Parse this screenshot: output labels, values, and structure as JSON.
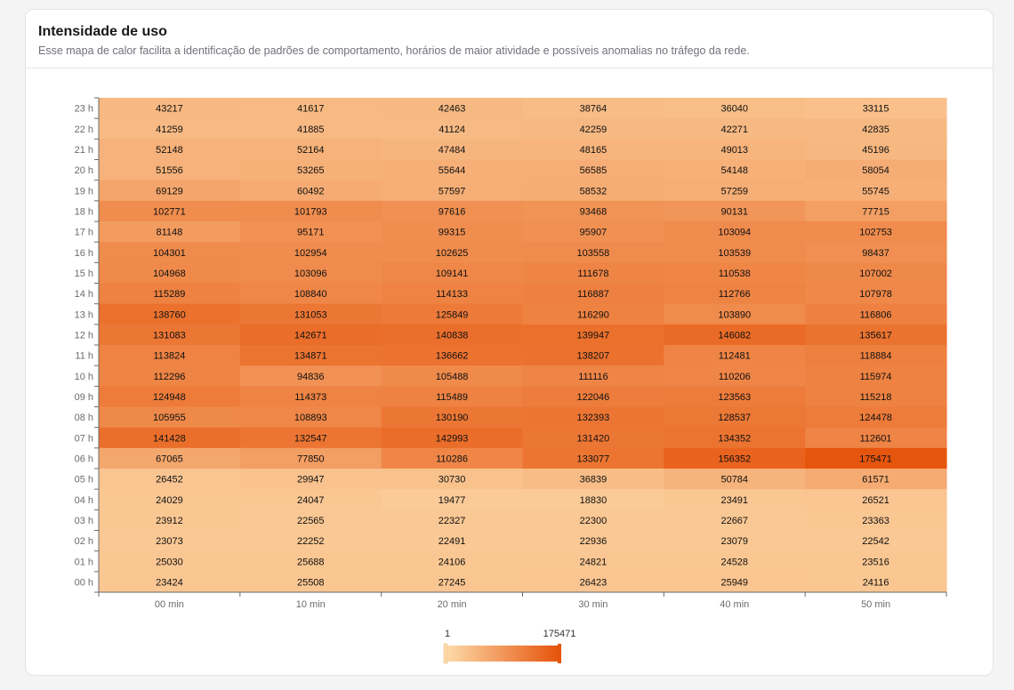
{
  "header": {
    "title": "Intensidade de uso",
    "subtitle": "Esse mapa de calor facilita a identificação de padrões de comportamento, horários de maior atividade e possíveis anomalias no tráfego da rede."
  },
  "colors": {
    "low": "#fdd9a8",
    "high": "#e6550d",
    "handle": "#e6550d",
    "cell_text": "#111111",
    "axis_text": "#6b6b6b",
    "axis_line": "#6b6b6b"
  },
  "chart_data": {
    "type": "heatmap",
    "title": "Intensidade de uso",
    "x": [
      "00 min",
      "10 min",
      "20 min",
      "30 min",
      "40 min",
      "50 min"
    ],
    "y": [
      "23 h",
      "22 h",
      "21 h",
      "20 h",
      "19 h",
      "18 h",
      "17 h",
      "16 h",
      "15 h",
      "14 h",
      "13 h",
      "12 h",
      "11 h",
      "10 h",
      "09 h",
      "08 h",
      "07 h",
      "06 h",
      "05 h",
      "04 h",
      "03 h",
      "02 h",
      "01 h",
      "00 h"
    ],
    "values": [
      [
        43217,
        41617,
        42463,
        38764,
        36040,
        33115
      ],
      [
        41259,
        41885,
        41124,
        42259,
        42271,
        42835
      ],
      [
        52148,
        52164,
        47484,
        48165,
        49013,
        45196
      ],
      [
        51556,
        53265,
        55644,
        56585,
        54148,
        58054
      ],
      [
        69129,
        60492,
        57597,
        58532,
        57259,
        55745
      ],
      [
        102771,
        101793,
        97616,
        93468,
        90131,
        77715
      ],
      [
        81148,
        95171,
        99315,
        95907,
        103094,
        102753
      ],
      [
        104301,
        102954,
        102625,
        103558,
        103539,
        98437
      ],
      [
        104968,
        103096,
        109141,
        111678,
        110538,
        107002
      ],
      [
        115289,
        108840,
        114133,
        116887,
        112766,
        107978
      ],
      [
        138760,
        131053,
        125849,
        116290,
        103890,
        116806
      ],
      [
        131083,
        142671,
        140838,
        139947,
        146082,
        135617
      ],
      [
        113824,
        134871,
        136662,
        138207,
        112481,
        118884
      ],
      [
        112296,
        94836,
        105488,
        111116,
        110206,
        115974
      ],
      [
        124948,
        114373,
        115489,
        122046,
        123563,
        115218
      ],
      [
        105955,
        108893,
        130190,
        132393,
        128537,
        124478
      ],
      [
        141428,
        132547,
        142993,
        131420,
        134352,
        112601
      ],
      [
        67065,
        77850,
        110286,
        133077,
        156352,
        175471
      ],
      [
        26452,
        29947,
        30730,
        36839,
        50784,
        61571
      ],
      [
        24029,
        24047,
        19477,
        18830,
        23491,
        26521
      ],
      [
        23912,
        22565,
        22327,
        22300,
        22667,
        23363
      ],
      [
        23073,
        22252,
        22491,
        22936,
        23079,
        22542
      ],
      [
        25030,
        25688,
        24106,
        24821,
        24528,
        23516
      ],
      [
        23424,
        25508,
        27245,
        26423,
        25949,
        24116
      ]
    ],
    "visual_map": {
      "min": 1,
      "max": 175471,
      "min_label": "1",
      "max_label": "175471"
    },
    "legend_position": "bottom-center"
  }
}
